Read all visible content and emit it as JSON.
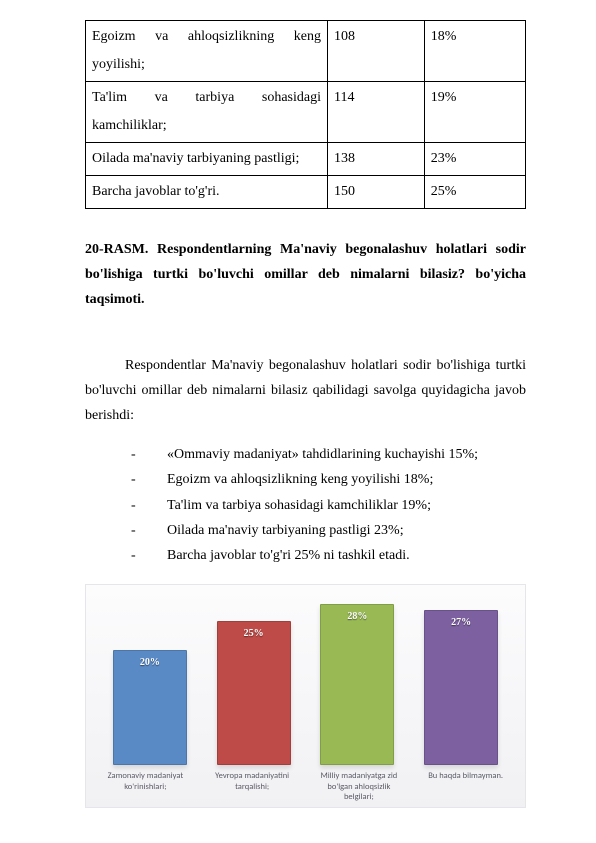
{
  "table": {
    "rows": [
      {
        "label": "Egoizm va ahloqsizlikning keng yoyilishi;",
        "num": "108",
        "pct": "18%"
      },
      {
        "label": "Ta'lim va tarbiya sohasidagi kamchiliklar;",
        "num": "114",
        "pct": "19%"
      },
      {
        "label": "Oilada ma'naviy tarbiyaning pastligi;",
        "num": "138",
        "pct": "23%"
      },
      {
        "label": "Barcha javoblar to'g'ri.",
        "num": "150",
        "pct": "25%"
      }
    ]
  },
  "heading": "20-RASM. Respondentlarning Ma'naviy begonalashuv holatlari sodir bo'lishiga turtki bo'luvchi omillar deb nimalarni bilasiz? bo'yicha taqsimoti.",
  "paragraph": "Respondentlar Ma'naviy begonalashuv holatlari sodir bo'lishiga turtki bo'luvchi omillar deb nimalarni bilasiz qabilidagi savolga quyidagicha javob berishdi:",
  "bullets": [
    "«Ommaviy madaniyat» tahdidlarining kuchayishi  15%;",
    "Egoizm va ahloqsizlikning keng yoyilishi  18%;",
    "Ta'lim va tarbiya sohasidagi kamchiliklar  19%;",
    "Oilada ma'naviy tarbiyaning pastligi  23%;",
    "Barcha javoblar to'g'ri  25% ni tashkil etadi."
  ],
  "chart": {
    "type": "bar",
    "ylim": [
      0,
      30
    ],
    "background_color": "#f3f3f6",
    "bars": [
      {
        "label": "Zamonaviy madaniyat ko'rinishlari;",
        "value": 20,
        "pct_text": "20%",
        "color": "#5a8ac6"
      },
      {
        "label": "Yevropa madaniyatini tarqalishi;",
        "value": 25,
        "pct_text": "25%",
        "color": "#be4b48"
      },
      {
        "label": "Milliy madaniyatga zid bo'lgan ahloqsizlik belgilari;",
        "value": 28,
        "pct_text": "28%",
        "color": "#98b954"
      },
      {
        "label": "Bu haqda bilmayman.",
        "value": 27,
        "pct_text": "27%",
        "color": "#7d60a0"
      }
    ],
    "pct_label_color": "#ffffff",
    "xaxis_label_color": "#5a5a66"
  }
}
